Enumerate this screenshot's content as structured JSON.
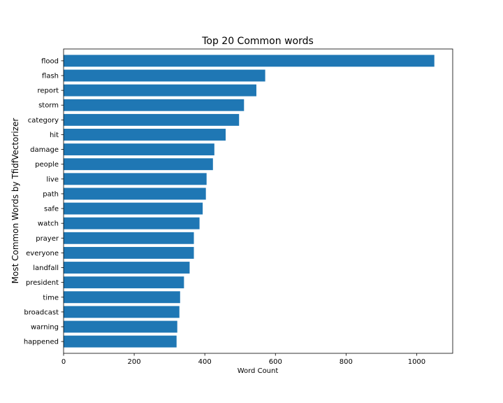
{
  "chart_data": {
    "type": "bar",
    "orientation": "horizontal",
    "title": "Top 20 Common words",
    "xlabel": "Word Count",
    "ylabel": "Most Common Words by TfidfVectorizer",
    "categories": [
      "flood",
      "flash",
      "report",
      "storm",
      "category",
      "hit",
      "damage",
      "people",
      "live",
      "path",
      "safe",
      "watch",
      "prayer",
      "everyone",
      "landfall",
      "president",
      "time",
      "broadcast",
      "warning",
      "happened"
    ],
    "values": [
      1050,
      571,
      546,
      511,
      497,
      459,
      427,
      423,
      405,
      403,
      394,
      385,
      369,
      369,
      357,
      341,
      330,
      328,
      322,
      320
    ],
    "xlim": [
      0,
      1102
    ],
    "xticks": [
      0,
      200,
      400,
      600,
      800,
      1000
    ],
    "grid": false,
    "bar_color": "#1f77b4"
  }
}
